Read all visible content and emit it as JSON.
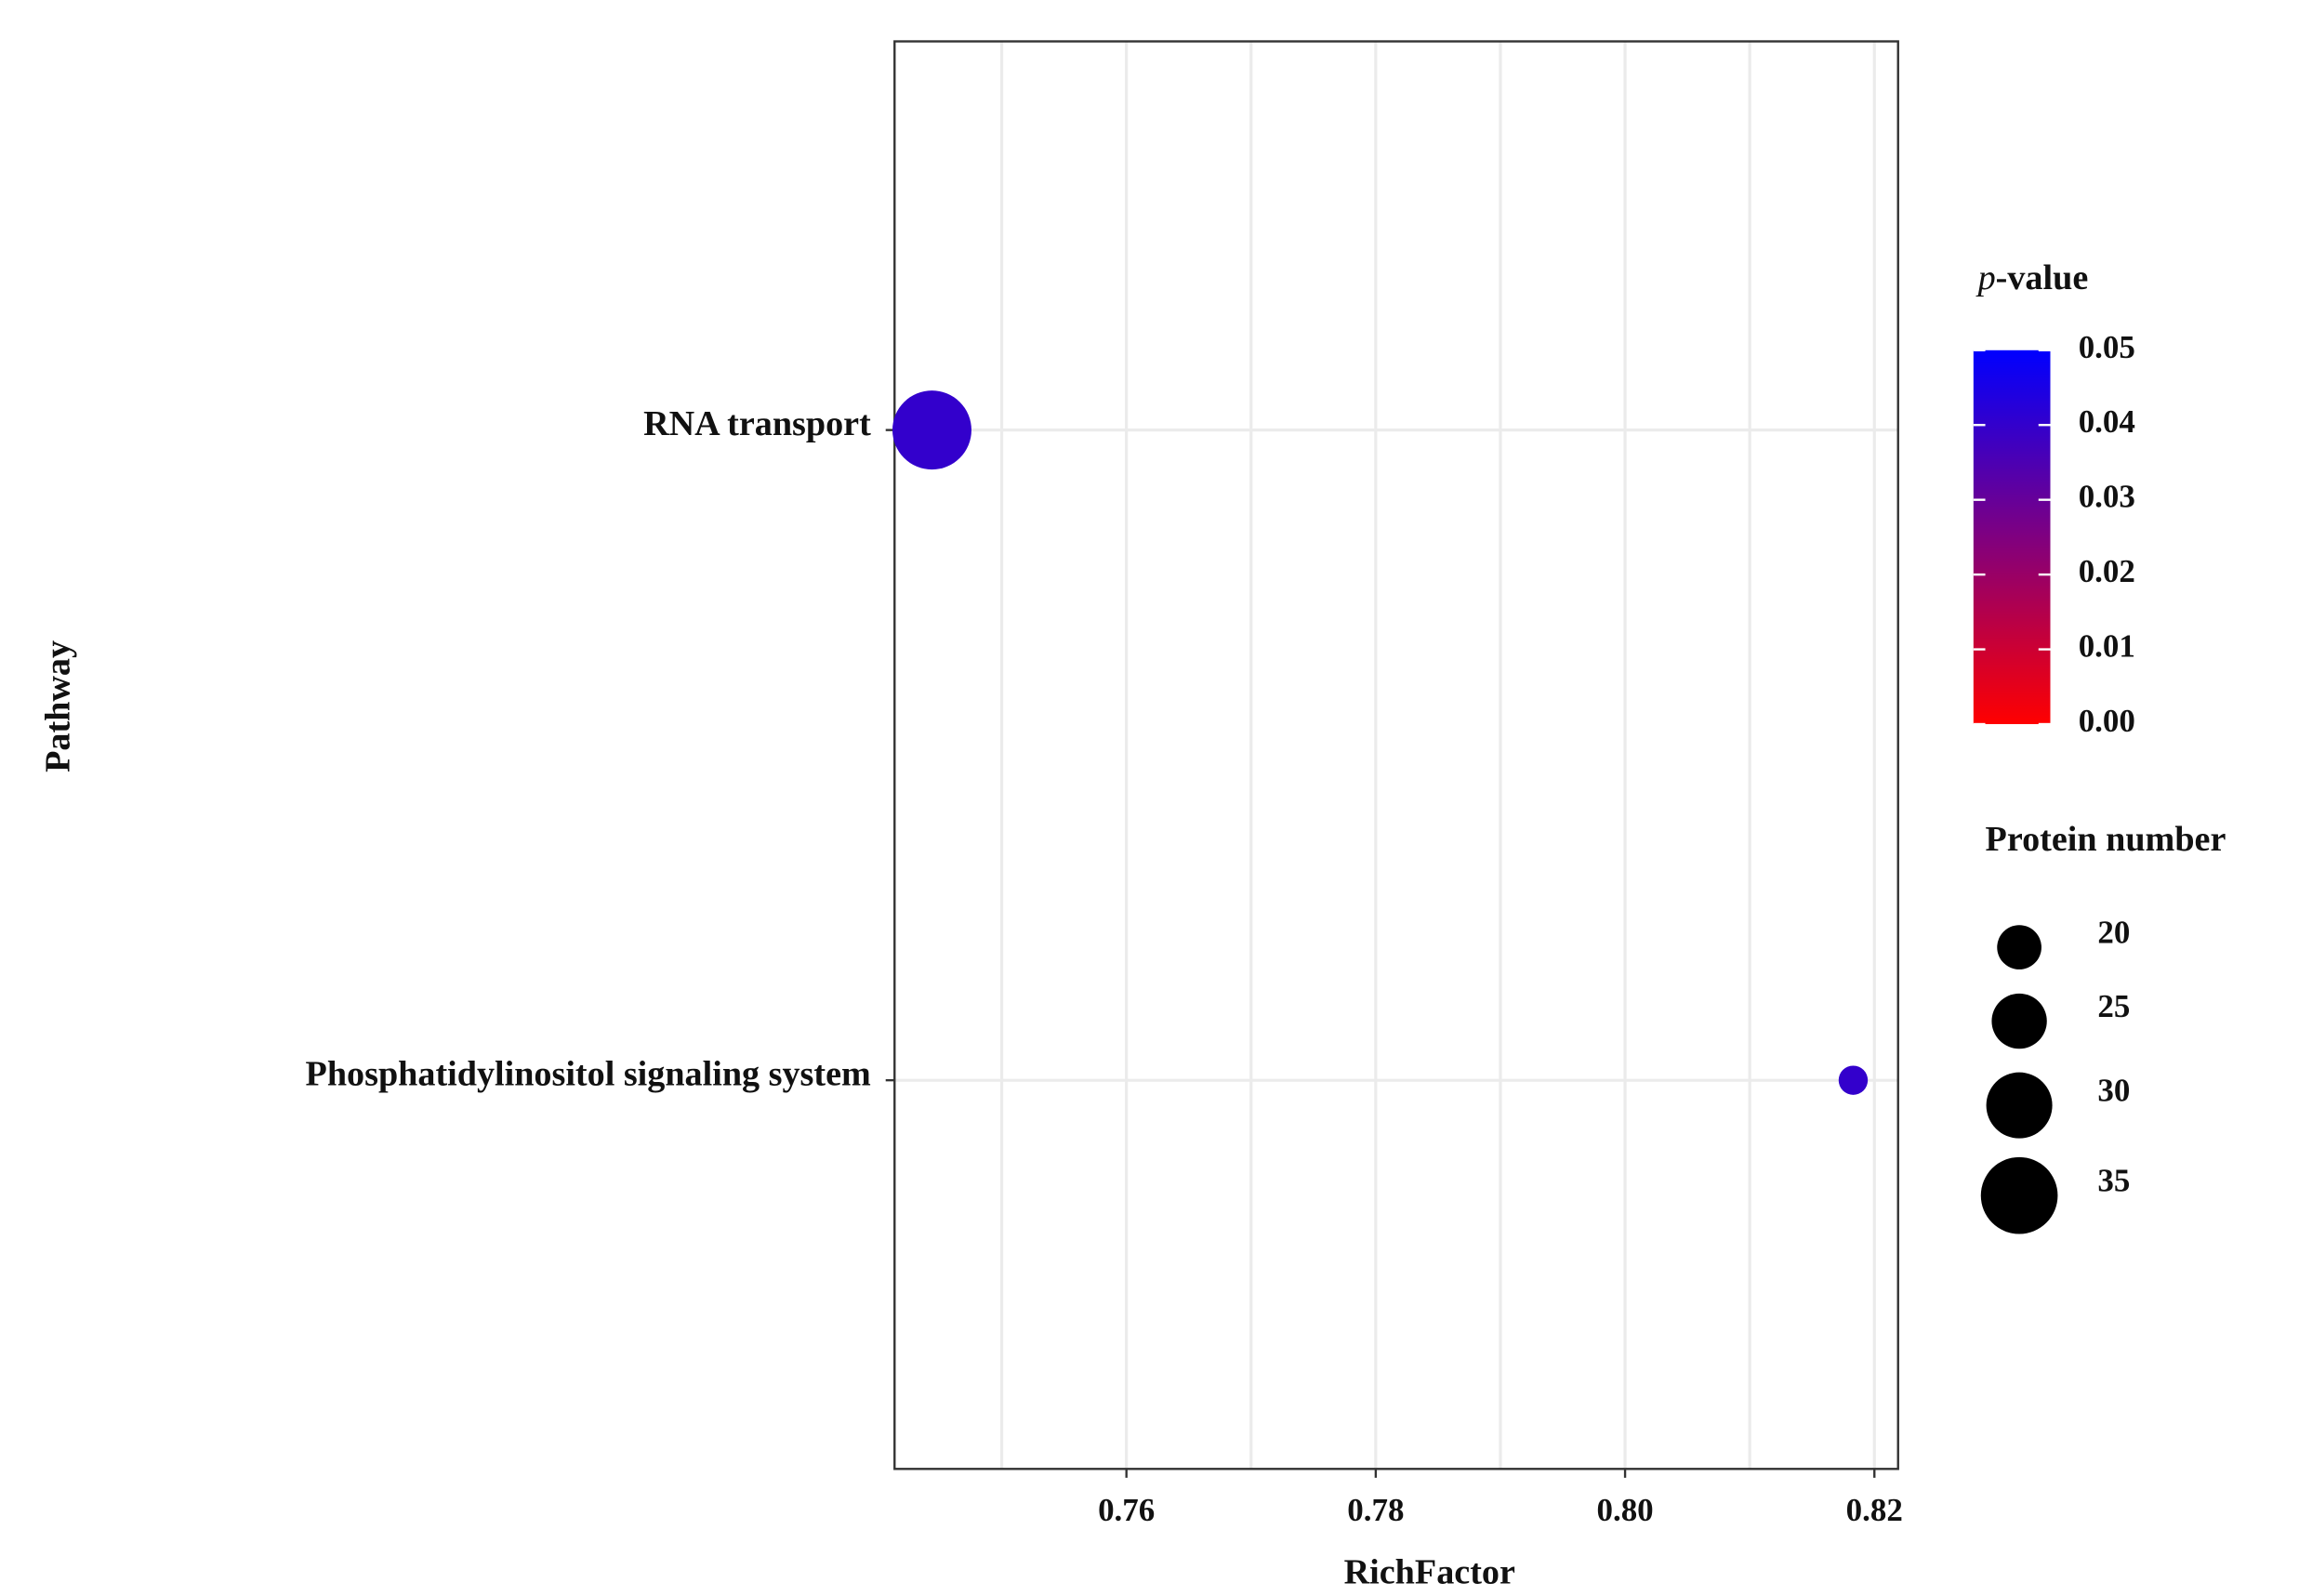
{
  "chart_data": {
    "type": "scatter",
    "x_label": "RichFactor",
    "y_label": "Pathway",
    "categories": [
      "RNA transport",
      "Phosphatidylinositol signaling system"
    ],
    "x": [
      0.7444,
      0.8183
    ],
    "sizes": [
      36,
      13
    ],
    "p_values": [
      0.04,
      0.04
    ],
    "xlim": [
      0.7414,
      0.8219
    ],
    "xticks": [
      {
        "value": 0.76,
        "label": "0.76"
      },
      {
        "value": 0.78,
        "label": "0.78"
      },
      {
        "value": 0.8,
        "label": "0.80"
      },
      {
        "value": 0.82,
        "label": "0.82"
      }
    ],
    "grid": true,
    "color_legend": {
      "title_italic": "p",
      "title": "-value",
      "low_color": "#ff0000",
      "high_color": "#0000ff",
      "lim": [
        0,
        0.05
      ],
      "ticks": [
        {
          "value": 0,
          "label": "0.00"
        },
        {
          "value": 0.01,
          "label": "0.01"
        },
        {
          "value": 0.02,
          "label": "0.02"
        },
        {
          "value": 0.03,
          "label": "0.03"
        },
        {
          "value": 0.04,
          "label": "0.04"
        },
        {
          "value": 0.05,
          "label": "0.05"
        }
      ]
    },
    "size_legend": {
      "title": "Protein number",
      "values": [
        20,
        25,
        30,
        35
      ]
    }
  }
}
